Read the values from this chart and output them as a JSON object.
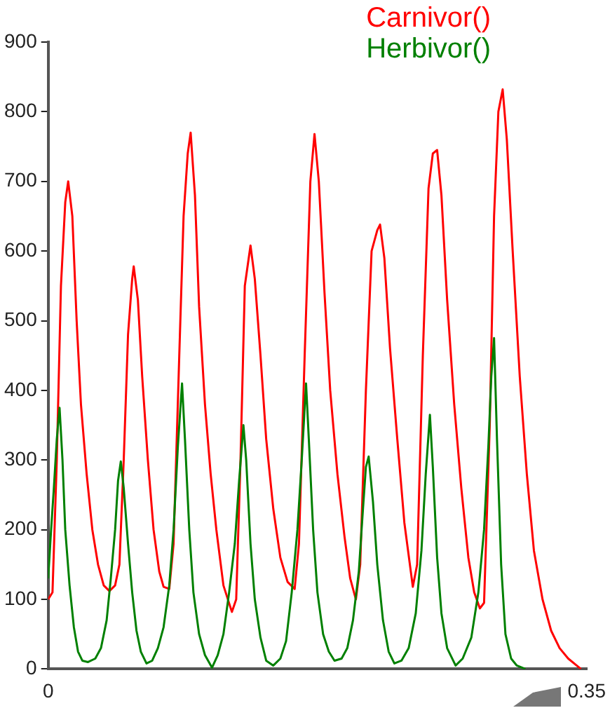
{
  "chart_data": {
    "type": "line",
    "xlim": [
      0,
      0.35
    ],
    "xticks": [
      0,
      0.35
    ],
    "ylim": [
      0,
      900
    ],
    "yticks": [
      0,
      100,
      200,
      300,
      400,
      500,
      600,
      700,
      800,
      900
    ],
    "grid": false,
    "legend": "top right",
    "marker": "none",
    "line_style": "solid",
    "series": [
      {
        "name": "Carnivor()",
        "color": "#ff0000",
        "x": [
          0,
          0.0028,
          0.0056,
          0.0083,
          0.0111,
          0.013,
          0.0157,
          0.0185,
          0.0213,
          0.025,
          0.0287,
          0.0324,
          0.0361,
          0.0398,
          0.0435,
          0.0463,
          0.0491,
          0.0519,
          0.0546,
          0.0556,
          0.0583,
          0.0611,
          0.0648,
          0.0685,
          0.0722,
          0.075,
          0.0787,
          0.0815,
          0.0852,
          0.088,
          0.0907,
          0.0926,
          0.0954,
          0.0981,
          0.1019,
          0.1056,
          0.1093,
          0.1139,
          0.1194,
          0.1222,
          0.125,
          0.1278,
          0.1315,
          0.1343,
          0.138,
          0.1417,
          0.1463,
          0.1509,
          0.1556,
          0.1602,
          0.163,
          0.1667,
          0.1704,
          0.1731,
          0.1759,
          0.1796,
          0.1833,
          0.188,
          0.1926,
          0.1963,
          0.2,
          0.2028,
          0.2065,
          0.2102,
          0.2139,
          0.2157,
          0.2185,
          0.2222,
          0.2269,
          0.2315,
          0.237,
          0.2398,
          0.2435,
          0.2472,
          0.25,
          0.2528,
          0.2556,
          0.2593,
          0.2639,
          0.2685,
          0.2731,
          0.2769,
          0.2806,
          0.2833,
          0.287,
          0.2898,
          0.2926,
          0.2954,
          0.2981,
          0.3019,
          0.3065,
          0.3111,
          0.3157,
          0.3213,
          0.3269,
          0.3324,
          0.338,
          0.3435,
          0.3463
        ],
        "values": [
          100,
          110,
          300,
          550,
          670,
          700,
          650,
          500,
          380,
          280,
          200,
          150,
          120,
          112,
          120,
          150,
          300,
          480,
          560,
          578,
          530,
          420,
          300,
          200,
          140,
          118,
          115,
          180,
          450,
          650,
          740,
          770,
          680,
          520,
          380,
          280,
          200,
          120,
          82,
          100,
          300,
          550,
          608,
          560,
          450,
          330,
          230,
          160,
          125,
          115,
          180,
          450,
          700,
          768,
          700,
          540,
          400,
          280,
          190,
          130,
          100,
          150,
          400,
          600,
          630,
          638,
          590,
          460,
          330,
          210,
          118,
          150,
          450,
          690,
          740,
          745,
          680,
          530,
          380,
          260,
          160,
          110,
          87,
          95,
          350,
          650,
          800,
          832,
          760,
          600,
          420,
          280,
          170,
          100,
          55,
          30,
          15,
          5,
          0
        ]
      },
      {
        "name": "Herbivor()",
        "color": "#008000",
        "x": [
          0,
          0.0019,
          0.0037,
          0.0056,
          0.0074,
          0.0093,
          0.0111,
          0.0139,
          0.0167,
          0.0194,
          0.0222,
          0.0259,
          0.0306,
          0.0343,
          0.038,
          0.0407,
          0.0435,
          0.0454,
          0.0472,
          0.0491,
          0.0519,
          0.0546,
          0.0574,
          0.0602,
          0.0639,
          0.0676,
          0.0713,
          0.075,
          0.0787,
          0.0815,
          0.0843,
          0.087,
          0.0889,
          0.0917,
          0.0944,
          0.0981,
          0.1019,
          0.1065,
          0.1102,
          0.1139,
          0.1176,
          0.1213,
          0.1241,
          0.1269,
          0.1287,
          0.1315,
          0.1343,
          0.138,
          0.1417,
          0.1463,
          0.1509,
          0.1546,
          0.1583,
          0.162,
          0.1648,
          0.1676,
          0.1694,
          0.1722,
          0.175,
          0.1787,
          0.1824,
          0.1861,
          0.1907,
          0.1944,
          0.1981,
          0.2019,
          0.2046,
          0.2065,
          0.2083,
          0.2111,
          0.2139,
          0.2176,
          0.2213,
          0.225,
          0.2296,
          0.2343,
          0.2389,
          0.2426,
          0.2454,
          0.2481,
          0.25,
          0.2528,
          0.2556,
          0.2593,
          0.2648,
          0.2694,
          0.275,
          0.2796,
          0.2833,
          0.2861,
          0.288,
          0.2898,
          0.2917,
          0.2944,
          0.2972,
          0.3009,
          0.3046,
          0.3102
        ],
        "values": [
          130,
          200,
          260,
          330,
          375,
          300,
          200,
          120,
          60,
          25,
          12,
          10,
          15,
          30,
          70,
          130,
          200,
          270,
          298,
          260,
          180,
          110,
          55,
          25,
          8,
          12,
          30,
          60,
          120,
          200,
          320,
          410,
          330,
          200,
          110,
          50,
          20,
          2,
          20,
          50,
          110,
          180,
          270,
          350,
          300,
          180,
          100,
          45,
          12,
          5,
          15,
          40,
          110,
          200,
          300,
          410,
          330,
          200,
          110,
          50,
          25,
          12,
          15,
          30,
          70,
          140,
          230,
          290,
          305,
          240,
          150,
          70,
          25,
          8,
          12,
          30,
          80,
          170,
          280,
          365,
          290,
          160,
          80,
          30,
          5,
          15,
          45,
          110,
          200,
          320,
          420,
          475,
          330,
          150,
          50,
          15,
          5,
          0
        ]
      }
    ]
  }
}
